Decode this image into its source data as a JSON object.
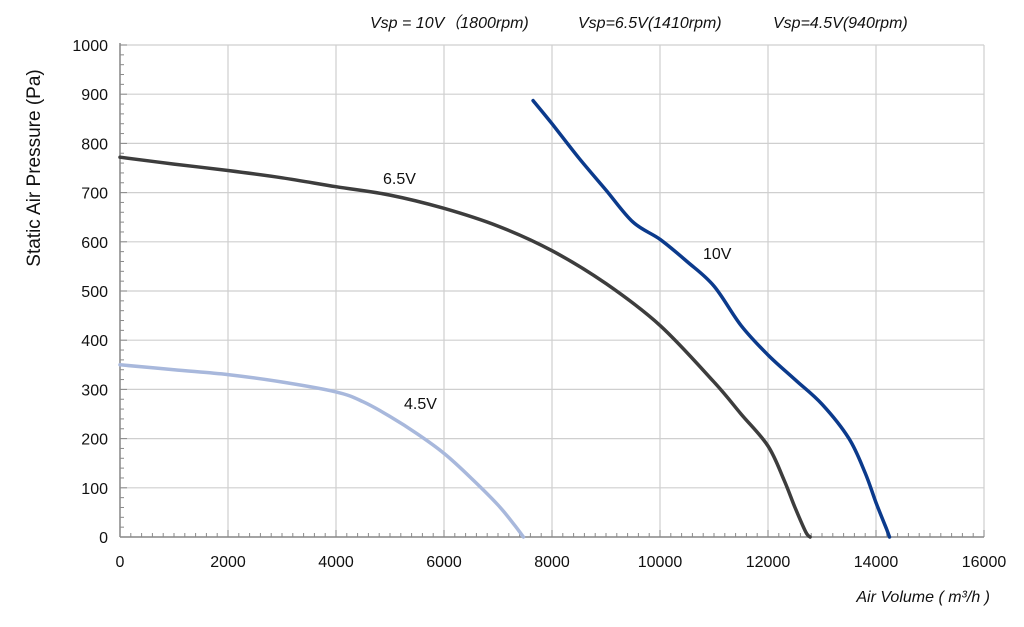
{
  "chart_data": {
    "type": "line",
    "header": [
      "Vsp = 10V（1800rpm)",
      "Vsp=6.5V(1410rpm)",
      "Vsp=4.5V(940rpm)"
    ],
    "xlabel": "Air Volume ( m³/h )",
    "ylabel": "Static Air Pressure  (Pa)",
    "xlim": [
      0,
      16000
    ],
    "ylim": [
      0,
      1000
    ],
    "xticks": [
      "0",
      "2000",
      "4000",
      "6000",
      "8000",
      "10000",
      "12000",
      "14000",
      "16000"
    ],
    "yticks": [
      "0",
      "100",
      "200",
      "300",
      "400",
      "500",
      "600",
      "700",
      "800",
      "900",
      "1000"
    ],
    "grid": true,
    "series": [
      {
        "name": "10V",
        "color": "#0b3a8c",
        "x": [
          7650,
          8000,
          8500,
          9000,
          9500,
          10000,
          10500,
          11000,
          11500,
          12000,
          12500,
          13000,
          13500,
          13800,
          14000,
          14200,
          14250
        ],
        "y": [
          887,
          840,
          770,
          705,
          640,
          605,
          560,
          510,
          430,
          370,
          320,
          270,
          200,
          130,
          70,
          15,
          0
        ]
      },
      {
        "name": "6.5V",
        "color": "#3d3d3d",
        "x": [
          0,
          1000,
          2000,
          3000,
          4000,
          5000,
          6000,
          7000,
          8000,
          9000,
          10000,
          11000,
          11500,
          12000,
          12300,
          12500,
          12700,
          12780
        ],
        "y": [
          772,
          758,
          745,
          730,
          712,
          695,
          668,
          632,
          582,
          515,
          430,
          315,
          250,
          185,
          115,
          60,
          10,
          0
        ]
      },
      {
        "name": "4.5V",
        "color": "#a8b8dc",
        "x": [
          0,
          1000,
          2000,
          3000,
          4000,
          4500,
          5000,
          5500,
          6000,
          6500,
          7000,
          7300,
          7470
        ],
        "y": [
          350,
          340,
          330,
          315,
          295,
          275,
          245,
          210,
          170,
          120,
          65,
          25,
          0
        ]
      }
    ]
  }
}
